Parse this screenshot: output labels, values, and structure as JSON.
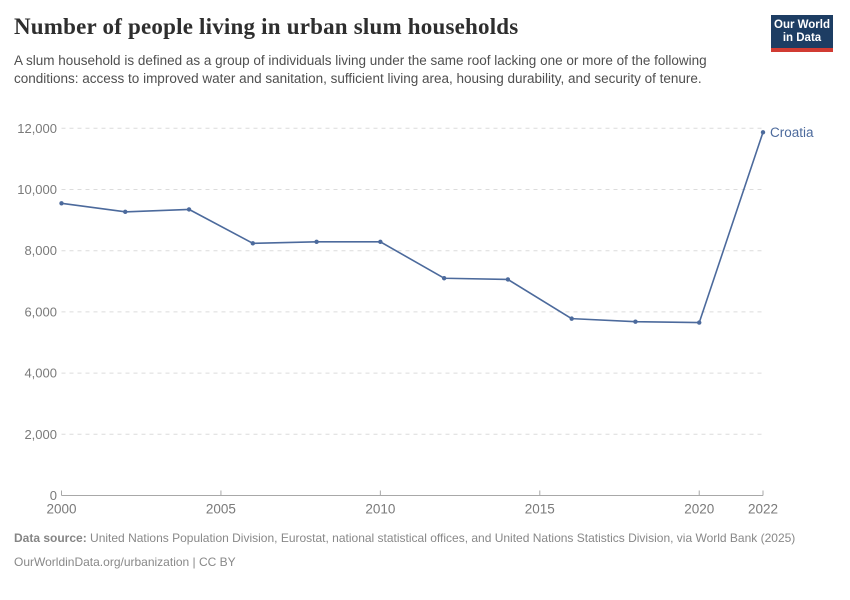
{
  "header": {
    "title": "Number of people living in urban slum households",
    "subtitle": "A slum household is defined as a group of individuals living under the same roof lacking one or more of the following conditions: access to improved water and sanitation, sufficient living area, housing durability, and security of tenure.",
    "logo": {
      "line1": "Our World",
      "line2": "in Data",
      "bg_color": "#1d3d63",
      "accent_color": "#d13b32"
    }
  },
  "chart_data": {
    "type": "line",
    "x": [
      2000,
      2002,
      2004,
      2006,
      2008,
      2010,
      2012,
      2014,
      2016,
      2018,
      2020,
      2022
    ],
    "series": [
      {
        "name": "Croatia",
        "color": "#4c6a9c",
        "values": [
          9550,
          9270,
          9350,
          8240,
          8290,
          8290,
          7100,
          7060,
          5780,
          5680,
          5650,
          11870
        ]
      }
    ],
    "title": "Number of people living in urban slum households",
    "xlabel": "",
    "ylabel": "",
    "xlim": [
      2000,
      2022
    ],
    "ylim": [
      0,
      12000
    ],
    "x_ticks": [
      2000,
      2005,
      2010,
      2015,
      2020,
      2022
    ],
    "y_ticks": [
      0,
      2000,
      4000,
      6000,
      8000,
      10000,
      12000
    ],
    "grid": "horizontal-dashed",
    "legend_position": "end-of-line-label",
    "end_label": "Croatia"
  },
  "footer": {
    "source_label": "Data source:",
    "source_text": "United Nations Population Division, Eurostat, national statistical offices, and United Nations Statistics Division, via World Bank (2025)",
    "note": "OurWorldinData.org/urbanization | CC BY"
  },
  "colors": {
    "line": "#4c6a9c",
    "grid": "#dcdcdc",
    "axis": "#a8a8a8",
    "tick_label": "#7a7a7a"
  }
}
